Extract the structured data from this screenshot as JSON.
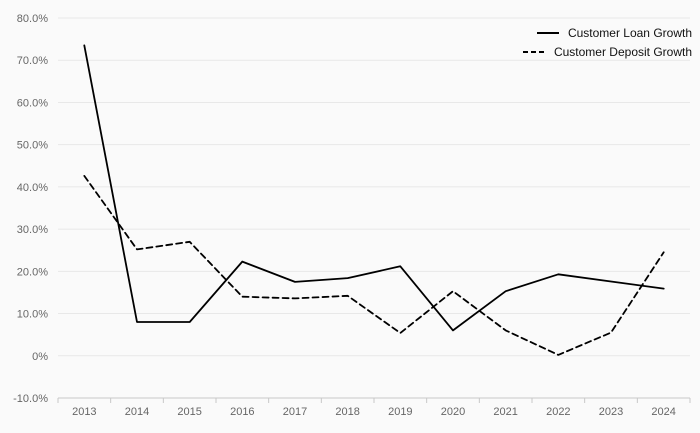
{
  "chart_data": {
    "type": "line",
    "categories": [
      "2013",
      "2014",
      "2015",
      "2016",
      "2017",
      "2018",
      "2019",
      "2020",
      "2021",
      "2022",
      "2023",
      "2024"
    ],
    "series": [
      {
        "name": "Customer Loan Growth",
        "style": "solid",
        "values": [
          73.5,
          8.0,
          8.0,
          22.3,
          17.5,
          18.4,
          21.2,
          6.0,
          15.3,
          19.3,
          17.6,
          15.9
        ]
      },
      {
        "name": "Customer Deposit Growth",
        "style": "dashed",
        "values": [
          42.6,
          25.2,
          27.0,
          14.0,
          13.6,
          14.2,
          5.4,
          15.3,
          6.0,
          0.2,
          5.5,
          24.5
        ]
      }
    ],
    "ylim": [
      -10,
      80
    ],
    "ytick_step": 10,
    "ytick_labels": [
      "-10.0%",
      "0%",
      "10.0%",
      "20.0%",
      "30.0%",
      "40.0%",
      "50.0%",
      "60.0%",
      "70.0%",
      "80.0%"
    ],
    "xlabel": "",
    "ylabel": "",
    "title": "",
    "grid": true,
    "legend_position": "top-right",
    "colors": {
      "line": "#000000",
      "grid": "#e8e8e8",
      "axis": "#c8c8c8",
      "text": "#666666",
      "background": "#fafafa"
    }
  }
}
